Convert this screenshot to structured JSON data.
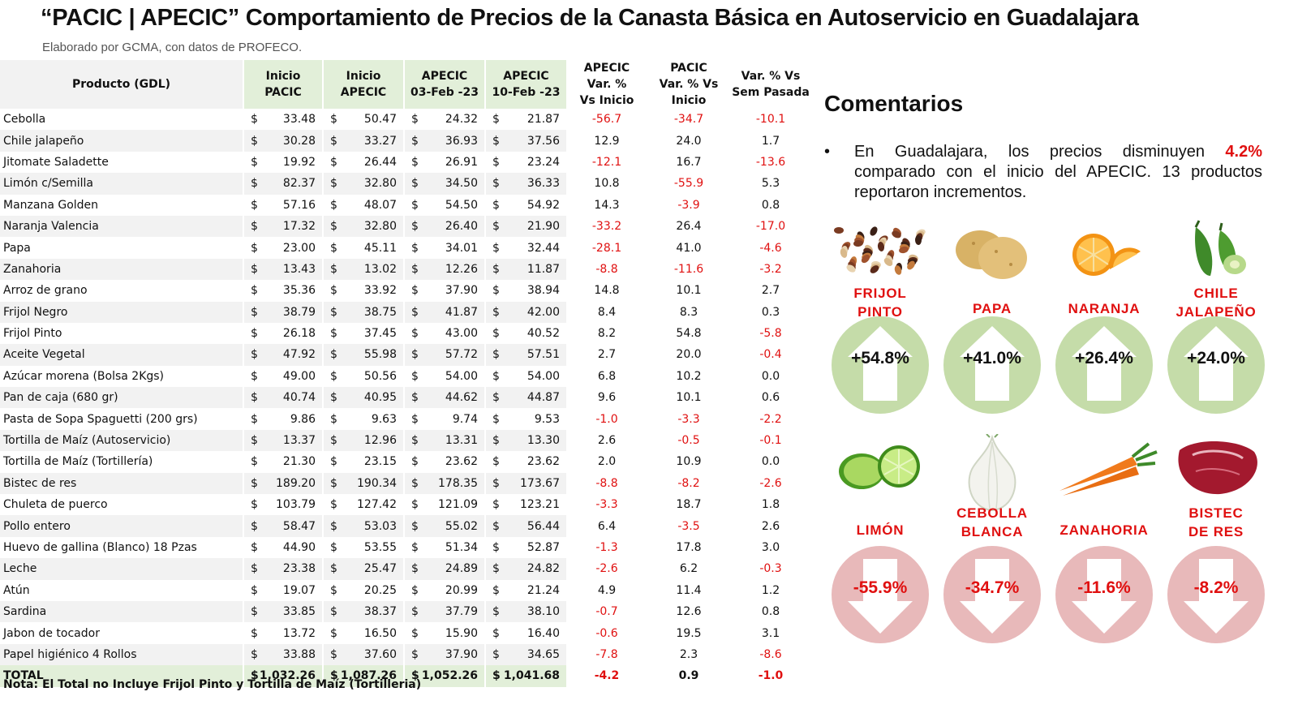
{
  "title": "“PACIC | APECIC” Comportamiento de Precios de la Canasta Básica en Autoservicio en Guadalajara",
  "subtitle": "Elaborado por GCMA, con datos de PROFECO.",
  "table": {
    "headers": {
      "product": "Producto (GDL)",
      "inicio_pacic": [
        "Inicio",
        "PACIC"
      ],
      "inicio_apecic": [
        "Inicio",
        "APECIC"
      ],
      "apecic_03": [
        "APECIC",
        "03-Feb -23"
      ],
      "apecic_10": [
        "APECIC",
        "10-Feb -23"
      ],
      "var_apecic": [
        "APECIC",
        "Var. %",
        "Vs Inicio"
      ],
      "var_pacic": [
        "PACIC",
        "Var. % Vs",
        "Inicio"
      ],
      "var_sem": [
        "Var. % Vs",
        "Sem Pasada"
      ]
    },
    "currency_symbol": "$",
    "rows": [
      {
        "name": "Cebolla",
        "pacic": "33.48",
        "apecic": "50.47",
        "feb03": "24.32",
        "feb10": "21.87",
        "var_apecic": "-56.7",
        "var_pacic": "-34.7",
        "var_sem": "-10.1"
      },
      {
        "name": "Chile jalapeño",
        "pacic": "30.28",
        "apecic": "33.27",
        "feb03": "36.93",
        "feb10": "37.56",
        "var_apecic": "12.9",
        "var_pacic": "24.0",
        "var_sem": "1.7"
      },
      {
        "name": "Jitomate Saladette",
        "pacic": "19.92",
        "apecic": "26.44",
        "feb03": "26.91",
        "feb10": "23.24",
        "var_apecic": "-12.1",
        "var_pacic": "16.7",
        "var_sem": "-13.6"
      },
      {
        "name": "Limón c/Semilla",
        "pacic": "82.37",
        "apecic": "32.80",
        "feb03": "34.50",
        "feb10": "36.33",
        "var_apecic": "10.8",
        "var_pacic": "-55.9",
        "var_sem": "5.3"
      },
      {
        "name": "Manzana Golden",
        "pacic": "57.16",
        "apecic": "48.07",
        "feb03": "54.50",
        "feb10": "54.92",
        "var_apecic": "14.3",
        "var_pacic": "-3.9",
        "var_sem": "0.8"
      },
      {
        "name": "Naranja Valencia",
        "pacic": "17.32",
        "apecic": "32.80",
        "feb03": "26.40",
        "feb10": "21.90",
        "var_apecic": "-33.2",
        "var_pacic": "26.4",
        "var_sem": "-17.0"
      },
      {
        "name": "Papa",
        "pacic": "23.00",
        "apecic": "45.11",
        "feb03": "34.01",
        "feb10": "32.44",
        "var_apecic": "-28.1",
        "var_pacic": "41.0",
        "var_sem": "-4.6"
      },
      {
        "name": "Zanahoria",
        "pacic": "13.43",
        "apecic": "13.02",
        "feb03": "12.26",
        "feb10": "11.87",
        "var_apecic": "-8.8",
        "var_pacic": "-11.6",
        "var_sem": "-3.2"
      },
      {
        "name": "Arroz de grano",
        "pacic": "35.36",
        "apecic": "33.92",
        "feb03": "37.90",
        "feb10": "38.94",
        "var_apecic": "14.8",
        "var_pacic": "10.1",
        "var_sem": "2.7"
      },
      {
        "name": "Frijol Negro",
        "pacic": "38.79",
        "apecic": "38.75",
        "feb03": "41.87",
        "feb10": "42.00",
        "var_apecic": "8.4",
        "var_pacic": "8.3",
        "var_sem": "0.3"
      },
      {
        "name": "Frijol Pinto",
        "pacic": "26.18",
        "apecic": "37.45",
        "feb03": "43.00",
        "feb10": "40.52",
        "var_apecic": "8.2",
        "var_pacic": "54.8",
        "var_sem": "-5.8"
      },
      {
        "name": "Aceite Vegetal",
        "pacic": "47.92",
        "apecic": "55.98",
        "feb03": "57.72",
        "feb10": "57.51",
        "var_apecic": "2.7",
        "var_pacic": "20.0",
        "var_sem": "-0.4"
      },
      {
        "name": "Azúcar morena (Bolsa 2Kgs)",
        "pacic": "49.00",
        "apecic": "50.56",
        "feb03": "54.00",
        "feb10": "54.00",
        "var_apecic": "6.8",
        "var_pacic": "10.2",
        "var_sem": "0.0"
      },
      {
        "name": "Pan de caja (680 gr)",
        "pacic": "40.74",
        "apecic": "40.95",
        "feb03": "44.62",
        "feb10": "44.87",
        "var_apecic": "9.6",
        "var_pacic": "10.1",
        "var_sem": "0.6"
      },
      {
        "name": "Pasta de Sopa Spaguetti (200 grs)",
        "pacic": "9.86",
        "apecic": "9.63",
        "feb03": "9.74",
        "feb10": "9.53",
        "var_apecic": "-1.0",
        "var_pacic": "-3.3",
        "var_sem": "-2.2"
      },
      {
        "name": "Tortilla de Maíz (Autoservicio)",
        "pacic": "13.37",
        "apecic": "12.96",
        "feb03": "13.31",
        "feb10": "13.30",
        "var_apecic": "2.6",
        "var_pacic": "-0.5",
        "var_sem": "-0.1"
      },
      {
        "name": "Tortilla de Maíz (Tortillería)",
        "pacic": "21.30",
        "apecic": "23.15",
        "feb03": "23.62",
        "feb10": "23.62",
        "var_apecic": "2.0",
        "var_pacic": "10.9",
        "var_sem": "0.0"
      },
      {
        "name": "Bistec de res",
        "pacic": "189.20",
        "apecic": "190.34",
        "feb03": "178.35",
        "feb10": "173.67",
        "var_apecic": "-8.8",
        "var_pacic": "-8.2",
        "var_sem": "-2.6"
      },
      {
        "name": "Chuleta de puerco",
        "pacic": "103.79",
        "apecic": "127.42",
        "feb03": "121.09",
        "feb10": "123.21",
        "var_apecic": "-3.3",
        "var_pacic": "18.7",
        "var_sem": "1.8"
      },
      {
        "name": "Pollo entero",
        "pacic": "58.47",
        "apecic": "53.03",
        "feb03": "55.02",
        "feb10": "56.44",
        "var_apecic": "6.4",
        "var_pacic": "-3.5",
        "var_sem": "2.6"
      },
      {
        "name": "Huevo de gallina (Blanco) 18 Pzas",
        "pacic": "44.90",
        "apecic": "53.55",
        "feb03": "51.34",
        "feb10": "52.87",
        "var_apecic": "-1.3",
        "var_pacic": "17.8",
        "var_sem": "3.0"
      },
      {
        "name": "Leche",
        "pacic": "23.38",
        "apecic": "25.47",
        "feb03": "24.89",
        "feb10": "24.82",
        "var_apecic": "-2.6",
        "var_pacic": "6.2",
        "var_sem": "-0.3"
      },
      {
        "name": "Atún",
        "pacic": "19.07",
        "apecic": "20.25",
        "feb03": "20.99",
        "feb10": "21.24",
        "var_apecic": "4.9",
        "var_pacic": "11.4",
        "var_sem": "1.2"
      },
      {
        "name": "Sardina",
        "pacic": "33.85",
        "apecic": "38.37",
        "feb03": "37.79",
        "feb10": "38.10",
        "var_apecic": "-0.7",
        "var_pacic": "12.6",
        "var_sem": "0.8"
      },
      {
        "name": "Jabon de tocador",
        "pacic": "13.72",
        "apecic": "16.50",
        "feb03": "15.90",
        "feb10": "16.40",
        "var_apecic": "-0.6",
        "var_pacic": "19.5",
        "var_sem": "3.1"
      },
      {
        "name": "Papel higiénico 4 Rollos",
        "pacic": "33.88",
        "apecic": "37.60",
        "feb03": "37.90",
        "feb10": "34.65",
        "var_apecic": "-7.8",
        "var_pacic": "2.3",
        "var_sem": "-8.6"
      }
    ],
    "total": {
      "name": "TOTAL",
      "pacic": "1,032.26",
      "apecic": "1,087.26",
      "feb03": "1,052.26",
      "feb10": "1,041.68",
      "var_apecic": "-4.2",
      "var_pacic": "0.9",
      "var_sem": "-1.0"
    }
  },
  "note": "Nota: El Total no Incluye Frijol Pinto y Tortilla de Maíz (Tortilleria)",
  "comments": {
    "heading": "Comentarios",
    "bullet": "•",
    "text_before": "En Guadalajara, los precios disminuyen ",
    "highlight": "4.2%",
    "text_after": " comparado con el inicio del APECIC. 13 productos reportaron incrementos."
  },
  "increases": [
    {
      "label_lines": [
        "FRIJOL",
        "PINTO"
      ],
      "pct": "+54.8%",
      "icon": "beans-icon"
    },
    {
      "label_lines": [
        "PAPA"
      ],
      "pct": "+41.0%",
      "icon": "potato-icon"
    },
    {
      "label_lines": [
        "NARANJA"
      ],
      "pct": "+26.4%",
      "icon": "orange-icon"
    },
    {
      "label_lines": [
        "CHILE",
        "JALAPEÑO"
      ],
      "pct": "+24.0%",
      "icon": "chile-icon"
    }
  ],
  "decreases": [
    {
      "label_lines": [
        "LIMÓN"
      ],
      "pct": "-55.9%",
      "icon": "lime-icon"
    },
    {
      "label_lines": [
        "CEBOLLA",
        "BLANCA"
      ],
      "pct": "-34.7%",
      "icon": "onion-icon"
    },
    {
      "label_lines": [
        "ZANAHORIA"
      ],
      "pct": "-11.6%",
      "icon": "carrot-icon"
    },
    {
      "label_lines": [
        "BISTEC",
        "DE RES"
      ],
      "pct": "-8.2%",
      "icon": "steak-icon"
    }
  ],
  "colors": {
    "header_green": "#e2efd9",
    "negative_red": "#e01010",
    "up_circle": "#c5dca9",
    "down_circle": "#e8b9ba"
  }
}
